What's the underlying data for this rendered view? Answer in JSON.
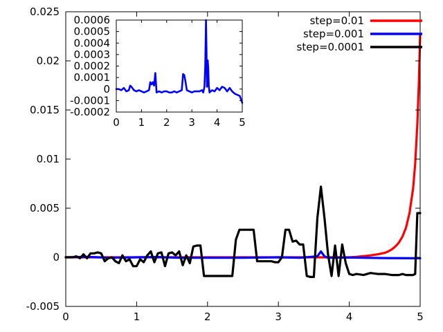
{
  "chart_data": [
    {
      "type": "line",
      "role": "main",
      "xlim": [
        0,
        5
      ],
      "ylim": [
        -0.005,
        0.025
      ],
      "xticks": [
        0,
        1,
        2,
        3,
        4,
        5
      ],
      "xtick_labels": [
        "0",
        "1",
        "2",
        "3",
        "4",
        "5"
      ],
      "yticks": [
        -0.005,
        0,
        0.005,
        0.01,
        0.015,
        0.02,
        0.025
      ],
      "ytick_labels": [
        "-0.005",
        "0",
        "0.005",
        "0.01",
        "0.015",
        "0.02",
        "0.025"
      ],
      "grid": false,
      "legend_position": "top-right",
      "series": [
        {
          "name": "step=0.01",
          "color": "#ff0000",
          "x": [
            0,
            0.5,
            1,
            1.5,
            2,
            2.5,
            3,
            3.5,
            4,
            4.1,
            4.2,
            4.3,
            4.4,
            4.5,
            4.55,
            4.6,
            4.65,
            4.7,
            4.75,
            4.8,
            4.85,
            4.9,
            4.93,
            4.96,
            4.98,
            5.0
          ],
          "y": [
            0,
            0,
            0,
            0,
            0,
            0,
            0,
            0,
            0,
            5e-05,
            0.00012,
            0.0002,
            0.0003,
            0.00045,
            0.0006,
            0.0008,
            0.0011,
            0.0015,
            0.0021,
            0.003,
            0.0045,
            0.007,
            0.0095,
            0.0135,
            0.0175,
            0.0227
          ]
        },
        {
          "name": "step=0.001",
          "color": "#0000ff",
          "x": [
            0,
            0.3,
            0.6,
            1,
            1.3,
            1.6,
            2,
            2.5,
            3,
            3.3,
            3.55,
            3.6,
            3.65,
            3.7,
            4,
            4.5,
            5
          ],
          "y": [
            0,
            5e-05,
            -5e-05,
            0,
            3e-05,
            -5e-05,
            -5e-05,
            -5e-05,
            0,
            -5e-05,
            0.0001,
            0.0006,
            0.0001,
            -5e-05,
            -3e-05,
            -8e-05,
            -0.0001
          ]
        },
        {
          "name": "step=0.0001",
          "color": "#000000",
          "x": [
            0,
            0.05,
            0.1,
            0.15,
            0.2,
            0.25,
            0.3,
            0.35,
            0.4,
            0.45,
            0.5,
            0.55,
            0.6,
            0.65,
            0.7,
            0.75,
            0.8,
            0.85,
            0.9,
            0.95,
            1.0,
            1.05,
            1.1,
            1.15,
            1.2,
            1.25,
            1.3,
            1.35,
            1.4,
            1.45,
            1.5,
            1.55,
            1.6,
            1.65,
            1.7,
            1.75,
            1.8,
            1.85,
            1.9,
            1.95,
            2.0,
            2.05,
            2.1,
            2.15,
            2.2,
            2.25,
            2.3,
            2.35,
            2.4,
            2.45,
            2.5,
            2.55,
            2.6,
            2.65,
            2.7,
            2.75,
            2.8,
            2.85,
            2.9,
            2.95,
            3.0,
            3.05,
            3.1,
            3.15,
            3.2,
            3.25,
            3.3,
            3.35,
            3.4,
            3.45,
            3.5,
            3.55,
            3.6,
            3.65,
            3.7,
            3.75,
            3.8,
            3.85,
            3.9,
            3.95,
            4.0,
            4.05,
            4.1,
            4.2,
            4.3,
            4.4,
            4.5,
            4.6,
            4.7,
            4.75,
            4.8,
            4.85,
            4.9,
            4.93,
            4.96,
            5.0
          ],
          "y": [
            0,
            0,
            0,
            0.0001,
            -0.0001,
            0.0003,
            -0.0001,
            0.0004,
            0.0004,
            0.0005,
            0.0004,
            -0.0004,
            -0.0001,
            0,
            -0.0004,
            -0.0006,
            0.0002,
            -0.0004,
            -0.0002,
            -0.0009,
            -0.0009,
            -0.0002,
            -0.0005,
            0.0002,
            0.0006,
            -0.0005,
            0.0004,
            0.0005,
            -0.0009,
            0.0004,
            0.0005,
            0.0002,
            0.0006,
            -0.0008,
            0.0002,
            -0.0006,
            0.0011,
            0.0012,
            0.0012,
            -0.0019,
            -0.0019,
            -0.0019,
            -0.0019,
            -0.0019,
            -0.0019,
            -0.0019,
            -0.0019,
            -0.0019,
            0.0018,
            0.0028,
            0.0028,
            0.0028,
            0.0028,
            0.0028,
            -0.0004,
            -0.0004,
            -0.0004,
            -0.0004,
            -0.0004,
            -0.0005,
            -0.0005,
            0,
            0.0028,
            0.0028,
            0.0016,
            0.0017,
            0.0013,
            0.0013,
            -0.0019,
            -0.002,
            -0.002,
            0.004,
            0.0072,
            0.004,
            0.0003,
            -0.0019,
            0.0012,
            -0.0019,
            0.0013,
            -0.0006,
            -0.0017,
            -0.0018,
            -0.0017,
            -0.0018,
            -0.0016,
            -0.0017,
            -0.0017,
            -0.0018,
            -0.0018,
            -0.0017,
            -0.0018,
            -0.0018,
            -0.0018,
            -0.0017,
            0.0045,
            0.0045
          ]
        }
      ]
    },
    {
      "type": "line",
      "role": "inset",
      "location": "top-left",
      "xlim": [
        0,
        5
      ],
      "ylim": [
        -0.0002,
        0.0006
      ],
      "xticks": [
        0,
        1,
        2,
        3,
        4,
        5
      ],
      "xtick_labels": [
        "0",
        "1",
        "2",
        "3",
        "4",
        "5"
      ],
      "yticks": [
        -0.0002,
        -0.0001,
        0,
        0.0001,
        0.0002,
        0.0003,
        0.0004,
        0.0005,
        0.0006
      ],
      "ytick_labels": [
        "-0.0002",
        "-0.0001",
        "0",
        "0.0001",
        "0.0002",
        "0.0003",
        "0.0004",
        "0.0005",
        "0.0006"
      ],
      "series": [
        {
          "color": "#0000ff",
          "x": [
            0,
            0.1,
            0.2,
            0.3,
            0.4,
            0.5,
            0.55,
            0.6,
            0.7,
            0.8,
            0.9,
            1.0,
            1.1,
            1.2,
            1.3,
            1.35,
            1.4,
            1.45,
            1.5,
            1.55,
            1.6,
            1.7,
            1.8,
            1.9,
            2.0,
            2.1,
            2.2,
            2.3,
            2.4,
            2.5,
            2.6,
            2.65,
            2.7,
            2.75,
            2.8,
            2.9,
            3.0,
            3.1,
            3.2,
            3.3,
            3.4,
            3.45,
            3.5,
            3.53,
            3.56,
            3.58,
            3.6,
            3.63,
            3.65,
            3.67,
            3.7,
            3.8,
            3.9,
            4.0,
            4.1,
            4.2,
            4.3,
            4.4,
            4.5,
            4.6,
            4.7,
            4.8,
            4.9,
            5.0
          ],
          "y": [
            0,
            0,
            -1e-05,
            1e-05,
            -2e-05,
            -1e-05,
            3e-05,
            2e-05,
            -1e-05,
            -2e-05,
            -1e-05,
            -2e-05,
            -3e-05,
            -2e-05,
            -1e-05,
            6e-05,
            4e-05,
            6e-05,
            3e-05,
            0.00014,
            -3e-05,
            -2e-05,
            -3e-05,
            -2e-05,
            -2e-05,
            -3e-05,
            -3e-05,
            -2e-05,
            -3e-05,
            -2e-05,
            -1e-05,
            0.00013,
            0.00012,
            6e-05,
            -1e-05,
            -2e-05,
            -3e-05,
            -2e-05,
            -2e-05,
            -2e-05,
            -1e-05,
            -3e-05,
            2e-05,
            0.0002,
            0.0006,
            0.00035,
            2e-05,
            0.00025,
            0.00018,
            3e-05,
            -3e-05,
            -1e-05,
            -2e-05,
            1e-05,
            -1e-05,
            2e-05,
            1e-05,
            -2e-05,
            1e-05,
            -2e-05,
            -4e-05,
            -5e-05,
            -6e-05,
            -0.00012
          ]
        }
      ]
    }
  ]
}
